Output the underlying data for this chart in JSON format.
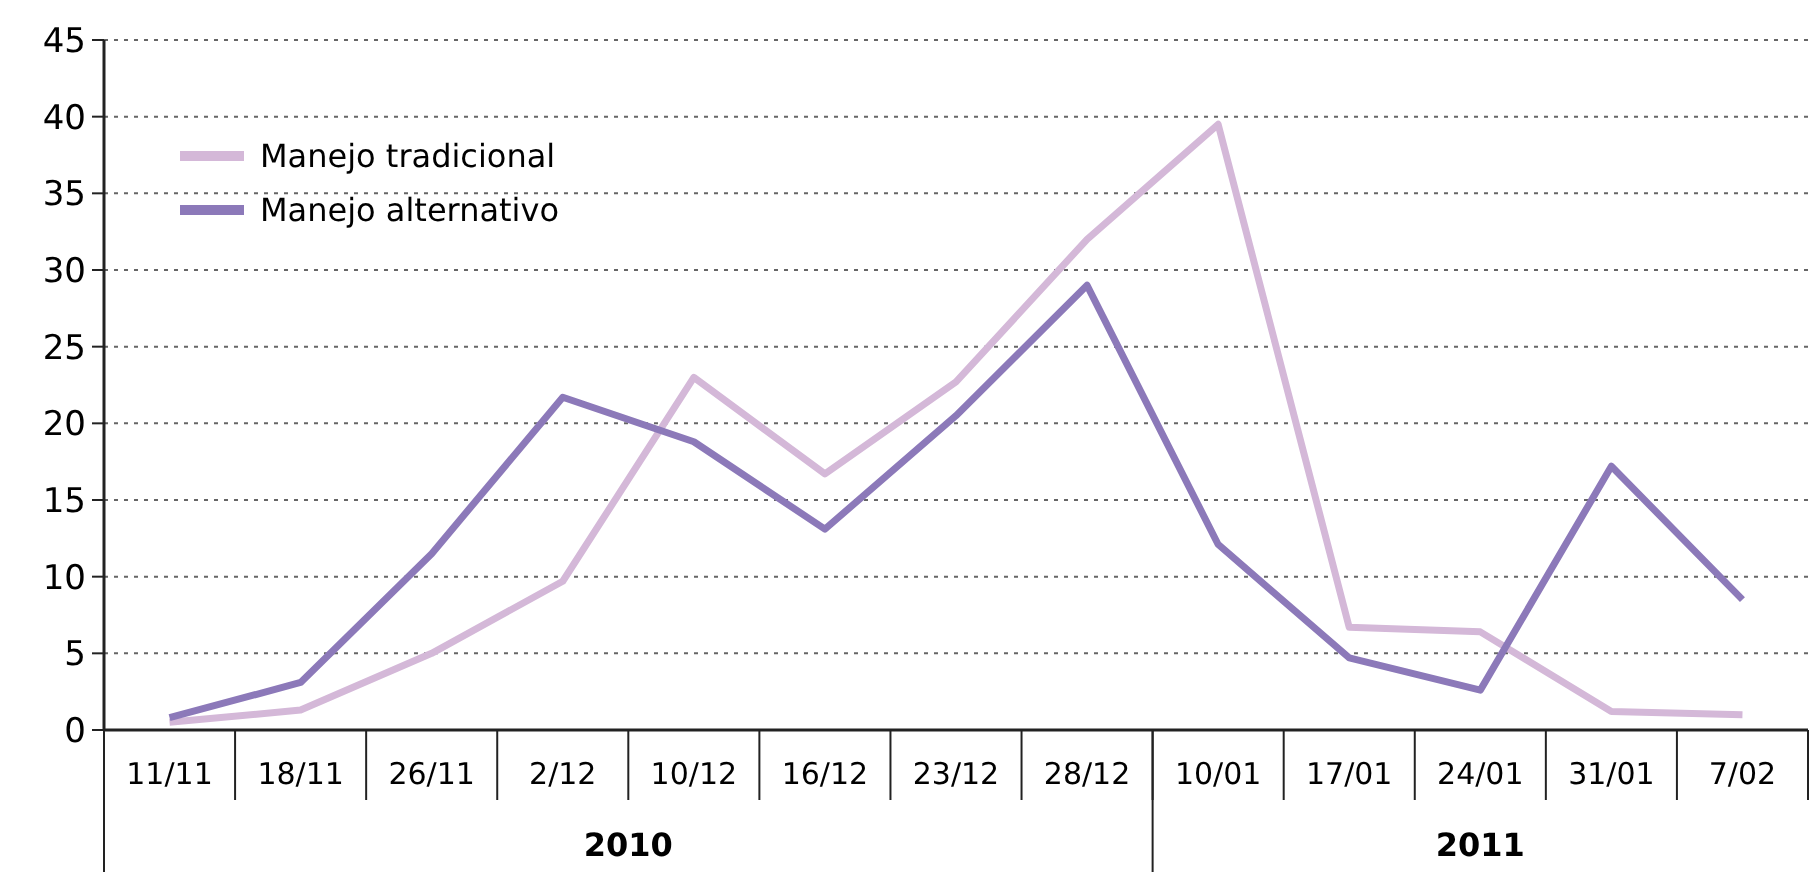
{
  "chart_data": {
    "type": "line",
    "categories": [
      "11/11",
      "18/11",
      "26/11",
      "2/12",
      "10/12",
      "16/12",
      "23/12",
      "28/12",
      "10/01",
      "17/01",
      "24/01",
      "31/01",
      "7/02"
    ],
    "series": [
      {
        "name": "Manejo tradicional",
        "color": "#d4b8d8",
        "values": [
          0.5,
          1.3,
          5,
          9.7,
          23,
          16.7,
          22.7,
          32,
          39.5,
          6.7,
          6.4,
          1.2,
          1.0
        ]
      },
      {
        "name": "Manejo alternativo",
        "color": "#8c79b9",
        "values": [
          0.8,
          3.1,
          11.5,
          21.7,
          18.8,
          13.1,
          20.5,
          29,
          12.1,
          4.7,
          2.6,
          17.2,
          8.5
        ]
      }
    ],
    "ylim": [
      0,
      45
    ],
    "yticks": [
      0,
      5,
      10,
      15,
      20,
      25,
      30,
      35,
      40,
      45
    ],
    "grid": "y",
    "legend": "top left",
    "marker": "none",
    "line_style": "solid",
    "annotations": [
      "2010",
      "2011"
    ]
  }
}
